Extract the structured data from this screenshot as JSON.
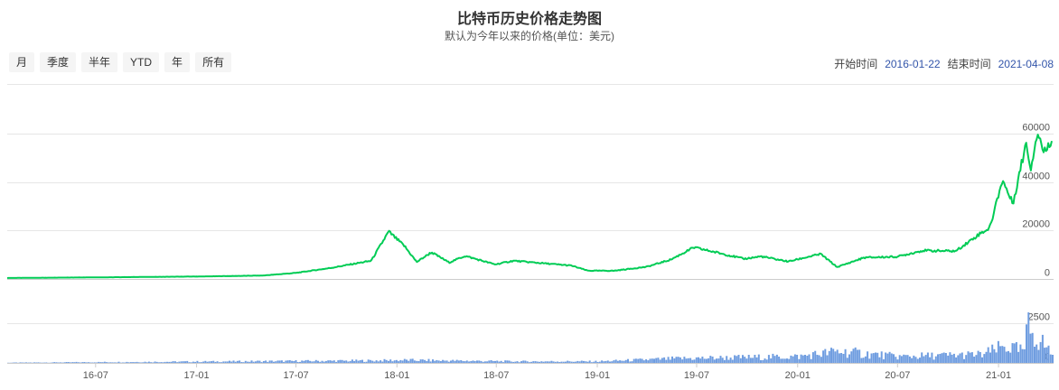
{
  "header": {
    "title": "比特币历史价格走势图",
    "subtitle": "默认为今年以来的价格(单位：美元)"
  },
  "range_buttons": [
    "月",
    "季度",
    "半年",
    "YTD",
    "年",
    "所有"
  ],
  "date_range": {
    "start_label": "开始时间",
    "start_value": "2016-01-22",
    "end_label": "结束时间",
    "end_value": "2021-04-08"
  },
  "colors": {
    "line": "#00cc55",
    "volume": "#6f9de0",
    "grid": "#e6e6e6",
    "accent": "#3355aa"
  },
  "chart_data": [
    {
      "type": "line",
      "series": [
        {
          "x": [
            "2016-01-22",
            "2016-07-01",
            "2017-01-01",
            "2017-05-01",
            "2017-07-01",
            "2017-09-01",
            "2017-11-15",
            "2017-12-17",
            "2018-01-15",
            "2018-02-06",
            "2018-03-05",
            "2018-04-06",
            "2018-05-05",
            "2018-06-29",
            "2018-08-01",
            "2018-11-15",
            "2018-12-15",
            "2019-02-01",
            "2019-04-01",
            "2019-05-15",
            "2019-06-26",
            "2019-08-15",
            "2019-09-25",
            "2019-10-26",
            "2019-12-15",
            "2020-02-12",
            "2020-03-13",
            "2020-05-01",
            "2020-07-01",
            "2020-08-15",
            "2020-10-15",
            "2020-11-30",
            "2020-12-16",
            "2021-01-08",
            "2021-01-27",
            "2021-02-21",
            "2021-02-28",
            "2021-03-13",
            "2021-03-25",
            "2021-04-08"
          ],
          "values": [
            400,
            650,
            1000,
            1400,
            2500,
            4500,
            7500,
            19500,
            13500,
            7000,
            11000,
            6800,
            9500,
            6000,
            7500,
            5500,
            3400,
            3400,
            5000,
            8000,
            13000,
            10500,
            8300,
            9300,
            7200,
            10300,
            4900,
            8800,
            9200,
            11700,
            11500,
            19000,
            21000,
            41000,
            31000,
            57000,
            45000,
            61000,
            52000,
            58000
          ]
        }
      ],
      "y_ticks": [
        0,
        20000,
        40000,
        60000
      ],
      "ylim": [
        0,
        60000
      ],
      "x_ticks": [
        "16-07",
        "17-01",
        "17-07",
        "18-01",
        "18-07",
        "19-01",
        "19-07",
        "20-01",
        "20-07",
        "21-01"
      ]
    },
    {
      "type": "bar",
      "series": [
        {
          "x": [
            "2016-01-22",
            "2017-11-15",
            "2018-01-15",
            "2018-08-01",
            "2019-01-01",
            "2019-06-01",
            "2020-01-01",
            "2020-03-13",
            "2020-07-01",
            "2020-12-01",
            "2021-01-11",
            "2021-02-15",
            "2021-02-22",
            "2021-04-08"
          ],
          "values": [
            20,
            180,
            220,
            120,
            120,
            350,
            500,
            900,
            500,
            650,
            1300,
            900,
            2800,
            700
          ]
        }
      ],
      "y_ticks": [
        0,
        2500
      ],
      "ylim": [
        0,
        3000
      ]
    }
  ]
}
